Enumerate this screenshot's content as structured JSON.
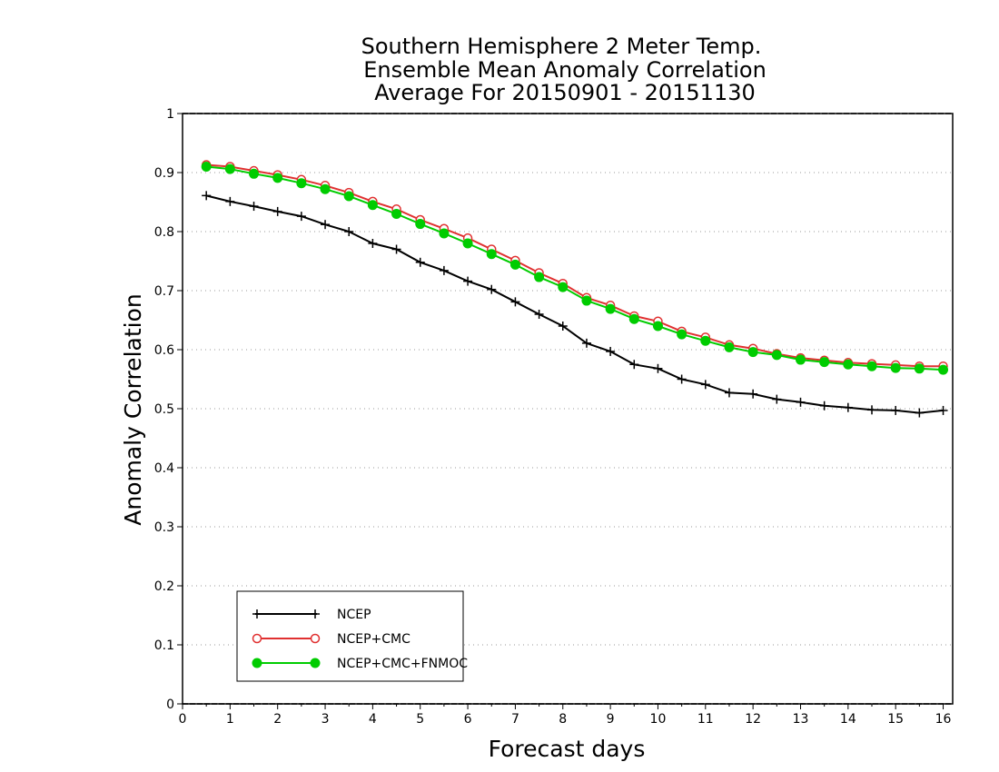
{
  "chart_data": {
    "type": "line",
    "title_lines": [
      "Southern Hemisphere 2 Meter Temp.",
      "Ensemble Mean Anomaly Correlation",
      "Average For 20150901 - 20151130"
    ],
    "xlabel": "Forecast days",
    "ylabel": "Anomaly Correlation",
    "xlim": [
      0,
      16.2
    ],
    "ylim": [
      0,
      1
    ],
    "xticks": [
      "0",
      "1",
      "2",
      "3",
      "4",
      "5",
      "6",
      "7",
      "8",
      "9",
      "10",
      "11",
      "12",
      "13",
      "14",
      "15",
      "16"
    ],
    "yticks": [
      "0",
      "0.1",
      "0.2",
      "0.3",
      "0.4",
      "0.5",
      "0.6",
      "0.7",
      "0.8",
      "0.9",
      "1"
    ],
    "grid": "horizontal dotted",
    "legend_position": "bottom-left",
    "x": [
      0.5,
      1,
      1.5,
      2,
      2.5,
      3,
      3.5,
      4,
      4.5,
      5,
      5.5,
      6,
      6.5,
      7,
      7.5,
      8,
      8.5,
      9,
      9.5,
      10,
      10.5,
      11,
      11.5,
      12,
      12.5,
      13,
      13.5,
      14,
      14.5,
      15,
      15.5,
      16
    ],
    "series": [
      {
        "name": "NCEP",
        "color": "#000000",
        "marker": "plus",
        "values": [
          0.861,
          0.851,
          0.843,
          0.834,
          0.826,
          0.812,
          0.8,
          0.78,
          0.77,
          0.748,
          0.734,
          0.716,
          0.702,
          0.681,
          0.66,
          0.64,
          0.611,
          0.597,
          0.575,
          0.568,
          0.55,
          0.541,
          0.527,
          0.525,
          0.516,
          0.511,
          0.505,
          0.502,
          0.498,
          0.497,
          0.493,
          0.497
        ]
      },
      {
        "name": "NCEP+CMC",
        "color": "#e03030",
        "marker": "open-circle",
        "values": [
          0.913,
          0.91,
          0.903,
          0.896,
          0.888,
          0.878,
          0.866,
          0.851,
          0.838,
          0.82,
          0.805,
          0.789,
          0.77,
          0.751,
          0.73,
          0.712,
          0.688,
          0.675,
          0.657,
          0.648,
          0.631,
          0.621,
          0.608,
          0.602,
          0.593,
          0.586,
          0.582,
          0.578,
          0.576,
          0.574,
          0.572,
          0.572
        ]
      },
      {
        "name": "NCEP+CMC+FNMOC",
        "color": "#00cc00",
        "marker": "filled-circle",
        "values": [
          0.91,
          0.906,
          0.898,
          0.891,
          0.882,
          0.872,
          0.86,
          0.845,
          0.83,
          0.813,
          0.797,
          0.78,
          0.762,
          0.744,
          0.723,
          0.706,
          0.683,
          0.669,
          0.652,
          0.64,
          0.626,
          0.615,
          0.604,
          0.596,
          0.591,
          0.583,
          0.579,
          0.575,
          0.572,
          0.569,
          0.568,
          0.566
        ]
      }
    ]
  }
}
